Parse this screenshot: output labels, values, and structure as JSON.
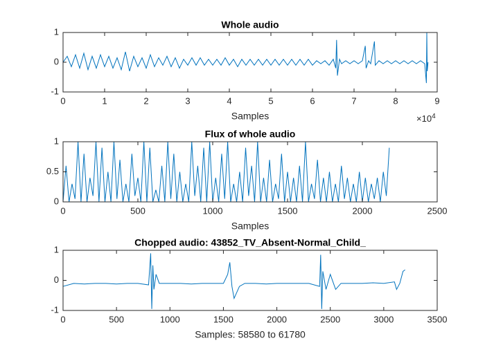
{
  "chart_data": [
    {
      "type": "line",
      "title": "Whole audio",
      "x_label": "Samples",
      "x_multiplier": "×10",
      "x_multiplier_exponent": "4",
      "color": "#0072bd",
      "xlim": [
        0,
        90000
      ],
      "ylim": [
        -1,
        1
      ],
      "xticks": [
        0,
        {
          "value": 10000,
          "label": "1"
        },
        {
          "value": 20000,
          "label": "2"
        },
        {
          "value": 30000,
          "label": "3"
        },
        {
          "value": 40000,
          "label": "4"
        },
        {
          "value": 50000,
          "label": "5"
        },
        {
          "value": 60000,
          "label": "6"
        },
        {
          "value": 70000,
          "label": "7"
        },
        {
          "value": 80000,
          "label": "8"
        },
        {
          "value": 90000,
          "label": "9"
        }
      ],
      "yticks": [
        -1,
        0,
        1
      ],
      "x": [
        0,
        1000,
        2000,
        3000,
        4000,
        5000,
        6000,
        7000,
        8000,
        9000,
        10000,
        11000,
        12000,
        13000,
        14000,
        15000,
        16000,
        17000,
        18000,
        19000,
        20000,
        21000,
        22000,
        23000,
        24000,
        25000,
        26000,
        27000,
        28000,
        29000,
        30000,
        31000,
        32000,
        33000,
        34000,
        35000,
        36000,
        37000,
        38000,
        39000,
        40000,
        41000,
        42000,
        43000,
        44000,
        45000,
        46000,
        47000,
        48000,
        49000,
        50000,
        51000,
        52000,
        53000,
        54000,
        55000,
        56000,
        57000,
        58000,
        59000,
        60000,
        61000,
        62000,
        63000,
        64000,
        65000,
        65600,
        65800,
        66000,
        66500,
        67000,
        68000,
        69000,
        70000,
        71000,
        72000,
        72700,
        72900,
        73500,
        74000,
        74900,
        75100,
        76000,
        77000,
        78000,
        79000,
        80000,
        81000,
        82000,
        83000,
        84000,
        85000,
        86000,
        87000,
        87400,
        87500,
        87600,
        87800
      ],
      "values": [
        0,
        0.2,
        -0.15,
        0.25,
        -0.2,
        0.3,
        -0.25,
        0.2,
        -0.2,
        0.25,
        -0.15,
        0.2,
        -0.2,
        0.15,
        -0.25,
        0.35,
        -0.3,
        0.2,
        -0.15,
        0.15,
        -0.2,
        0.25,
        -0.15,
        0.15,
        -0.1,
        0.2,
        -0.15,
        0.15,
        -0.2,
        0.1,
        -0.1,
        0.15,
        -0.1,
        0.15,
        -0.1,
        0.1,
        -0.1,
        0.1,
        -0.1,
        0.15,
        -0.1,
        0.1,
        -0.15,
        0.1,
        -0.1,
        0.1,
        -0.1,
        0.1,
        -0.1,
        0.1,
        -0.1,
        0.1,
        -0.1,
        0.1,
        -0.1,
        0.1,
        -0.1,
        0.1,
        -0.1,
        0.1,
        -0.1,
        0.05,
        -0.05,
        0.05,
        -0.1,
        0.1,
        -0.2,
        0.75,
        -0.45,
        0.1,
        -0.05,
        0.05,
        -0.05,
        0.05,
        -0.05,
        0.05,
        0.55,
        -0.2,
        0.05,
        -0.05,
        0.7,
        -0.1,
        0.05,
        -0.05,
        0.05,
        -0.05,
        0.05,
        -0.05,
        0.05,
        -0.05,
        0.05,
        -0.05,
        0.05,
        -0.05,
        -0.7,
        1,
        -0.3,
        0
      ]
    },
    {
      "type": "line",
      "title": "Flux of whole audio",
      "x_label": "Samples",
      "color": "#0072bd",
      "xlim": [
        0,
        2500
      ],
      "ylim": [
        0,
        1
      ],
      "xticks": [
        0,
        500,
        1000,
        1500,
        2000,
        2500
      ],
      "yticks": [
        0,
        0.5,
        1
      ],
      "x": [
        0,
        20,
        40,
        60,
        80,
        100,
        120,
        140,
        160,
        180,
        200,
        220,
        240,
        260,
        280,
        300,
        320,
        340,
        360,
        380,
        400,
        420,
        440,
        460,
        480,
        500,
        520,
        540,
        560,
        580,
        600,
        620,
        640,
        660,
        680,
        700,
        720,
        740,
        760,
        780,
        800,
        820,
        840,
        860,
        880,
        900,
        920,
        940,
        960,
        980,
        1000,
        1020,
        1040,
        1060,
        1080,
        1100,
        1120,
        1140,
        1160,
        1180,
        1200,
        1220,
        1240,
        1260,
        1280,
        1300,
        1320,
        1340,
        1360,
        1380,
        1400,
        1420,
        1440,
        1460,
        1480,
        1500,
        1520,
        1540,
        1560,
        1580,
        1600,
        1620,
        1640,
        1660,
        1680,
        1700,
        1720,
        1740,
        1760,
        1780,
        1800,
        1820,
        1840,
        1860,
        1880,
        1900,
        1920,
        1940,
        1960,
        1980,
        2000,
        2020,
        2040,
        2060,
        2080,
        2100,
        2120,
        2140,
        2160,
        2180
      ],
      "values": [
        0,
        0.6,
        0,
        0.3,
        0.05,
        1,
        0,
        0.8,
        0,
        0.4,
        0.1,
        1,
        0,
        0.9,
        0,
        0.5,
        0,
        1,
        0.05,
        0.7,
        0,
        0.3,
        0,
        0.8,
        0.1,
        0.4,
        0,
        1,
        0,
        0.9,
        0,
        0.2,
        0,
        0.6,
        0,
        1,
        0.05,
        0.8,
        0,
        0.5,
        0,
        0.3,
        0,
        1,
        0.1,
        0.6,
        0,
        0.9,
        0,
        1,
        0,
        0.4,
        0,
        0.8,
        0.05,
        1,
        0,
        0.3,
        0,
        0.5,
        0,
        0.9,
        0.1,
        0.6,
        0,
        1,
        0,
        0.4,
        0,
        0.7,
        0,
        0.3,
        0.05,
        0.8,
        0,
        0.5,
        0,
        0.4,
        0,
        0.6,
        0,
        1,
        0,
        0.3,
        0.05,
        0.7,
        0,
        0.4,
        0,
        0.5,
        0,
        0.3,
        0,
        0.6,
        0.05,
        0.4,
        0,
        0.3,
        0,
        0.5,
        0,
        0.4,
        0,
        0.3,
        0.05,
        0.4,
        0,
        0.5,
        0.1,
        0.9
      ]
    },
    {
      "type": "line",
      "title": "Chopped audio: 43852_TV_Absent-Normal_Child_",
      "x_label": "Samples: 58580 to 61780",
      "color": "#0072bd",
      "xlim": [
        0,
        3500
      ],
      "ylim": [
        -1,
        1
      ],
      "xticks": [
        0,
        500,
        1000,
        1500,
        2000,
        2500,
        3000,
        3500
      ],
      "yticks": [
        -1,
        0,
        1
      ],
      "x": [
        0,
        100,
        200,
        300,
        400,
        500,
        600,
        700,
        800,
        820,
        830,
        840,
        850,
        870,
        900,
        1000,
        1100,
        1200,
        1300,
        1400,
        1500,
        1540,
        1560,
        1580,
        1600,
        1650,
        1700,
        1800,
        1900,
        2000,
        2100,
        2200,
        2300,
        2400,
        2410,
        2420,
        2430,
        2460,
        2500,
        2550,
        2600,
        2700,
        2800,
        2900,
        3000,
        3100,
        3120,
        3150,
        3180,
        3200
      ],
      "values": [
        -0.2,
        -0.1,
        -0.12,
        -0.1,
        -0.1,
        -0.12,
        -0.1,
        -0.1,
        -0.15,
        0.9,
        -0.95,
        0.5,
        -0.3,
        0.2,
        -0.1,
        -0.1,
        -0.1,
        -0.12,
        -0.1,
        -0.1,
        -0.1,
        0.2,
        0.6,
        -0.2,
        -0.6,
        -0.2,
        -0.1,
        -0.1,
        -0.12,
        -0.1,
        -0.1,
        -0.1,
        -0.1,
        -0.2,
        0.85,
        -0.95,
        0.3,
        -0.3,
        0.2,
        -0.3,
        -0.1,
        -0.1,
        -0.1,
        -0.08,
        -0.1,
        -0.05,
        -0.3,
        -0.1,
        0.3,
        0.35
      ]
    }
  ]
}
